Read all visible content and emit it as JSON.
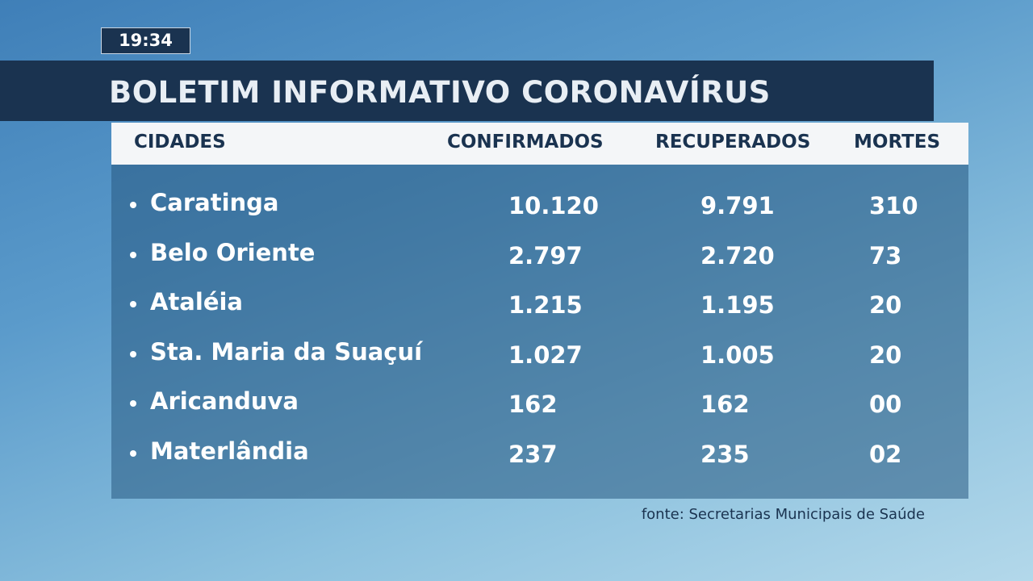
{
  "clock": "19:34",
  "title": "BOLETIM INFORMATIVO CORONAVÍRUS",
  "table": {
    "headers": [
      "CIDADES",
      "CONFIRMADOS",
      "RECUPERADOS",
      "MORTES"
    ],
    "rows": [
      [
        "Caratinga",
        "10.120",
        "9.791",
        "310"
      ],
      [
        "Belo Oriente",
        "2.797",
        "2.720",
        "73"
      ],
      [
        "Ataléia",
        "1.215",
        "1.195",
        "20"
      ],
      [
        "Sta. Maria da Suaçuí",
        "1.027",
        "1.005",
        "20"
      ],
      [
        "Aricanduva",
        "162",
        "162",
        "00"
      ],
      [
        "Materlândia",
        "237",
        "235",
        "02"
      ]
    ]
  },
  "source": "fonte: Secretarias Municipais de Saúde"
}
